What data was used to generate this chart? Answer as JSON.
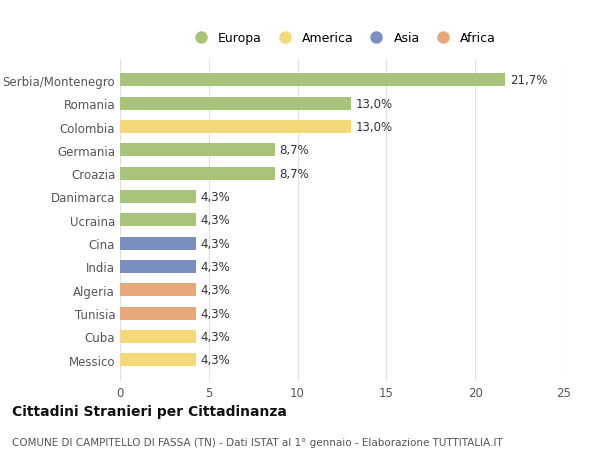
{
  "categories": [
    "Serbia/Montenegro",
    "Romania",
    "Colombia",
    "Germania",
    "Croazia",
    "Danimarca",
    "Ucraina",
    "Cina",
    "India",
    "Algeria",
    "Tunisia",
    "Cuba",
    "Messico"
  ],
  "values": [
    21.7,
    13.0,
    13.0,
    8.7,
    8.7,
    4.3,
    4.3,
    4.3,
    4.3,
    4.3,
    4.3,
    4.3,
    4.3
  ],
  "continents": [
    "Europa",
    "Europa",
    "America",
    "Europa",
    "Europa",
    "Europa",
    "Europa",
    "Asia",
    "Asia",
    "Africa",
    "Africa",
    "America",
    "America"
  ],
  "colors": {
    "Europa": "#a8c47a",
    "America": "#f5d878",
    "Asia": "#7a8fc0",
    "Africa": "#e8a87a"
  },
  "legend_order": [
    "Europa",
    "America",
    "Asia",
    "Africa"
  ],
  "xlim": [
    0,
    25
  ],
  "xticks": [
    0,
    5,
    10,
    15,
    20,
    25
  ],
  "title": "Cittadini Stranieri per Cittadinanza",
  "subtitle": "COMUNE DI CAMPITELLO DI FASSA (TN) - Dati ISTAT al 1° gennaio - Elaborazione TUTTITALIA.IT",
  "background_color": "#ffffff",
  "bar_height": 0.55,
  "grid_color": "#e0e0e0",
  "label_color": "#555555",
  "value_color": "#333333",
  "font_size_labels": 8.5,
  "font_size_values": 8.5,
  "font_size_title": 10,
  "font_size_subtitle": 7.5,
  "font_size_legend": 9
}
